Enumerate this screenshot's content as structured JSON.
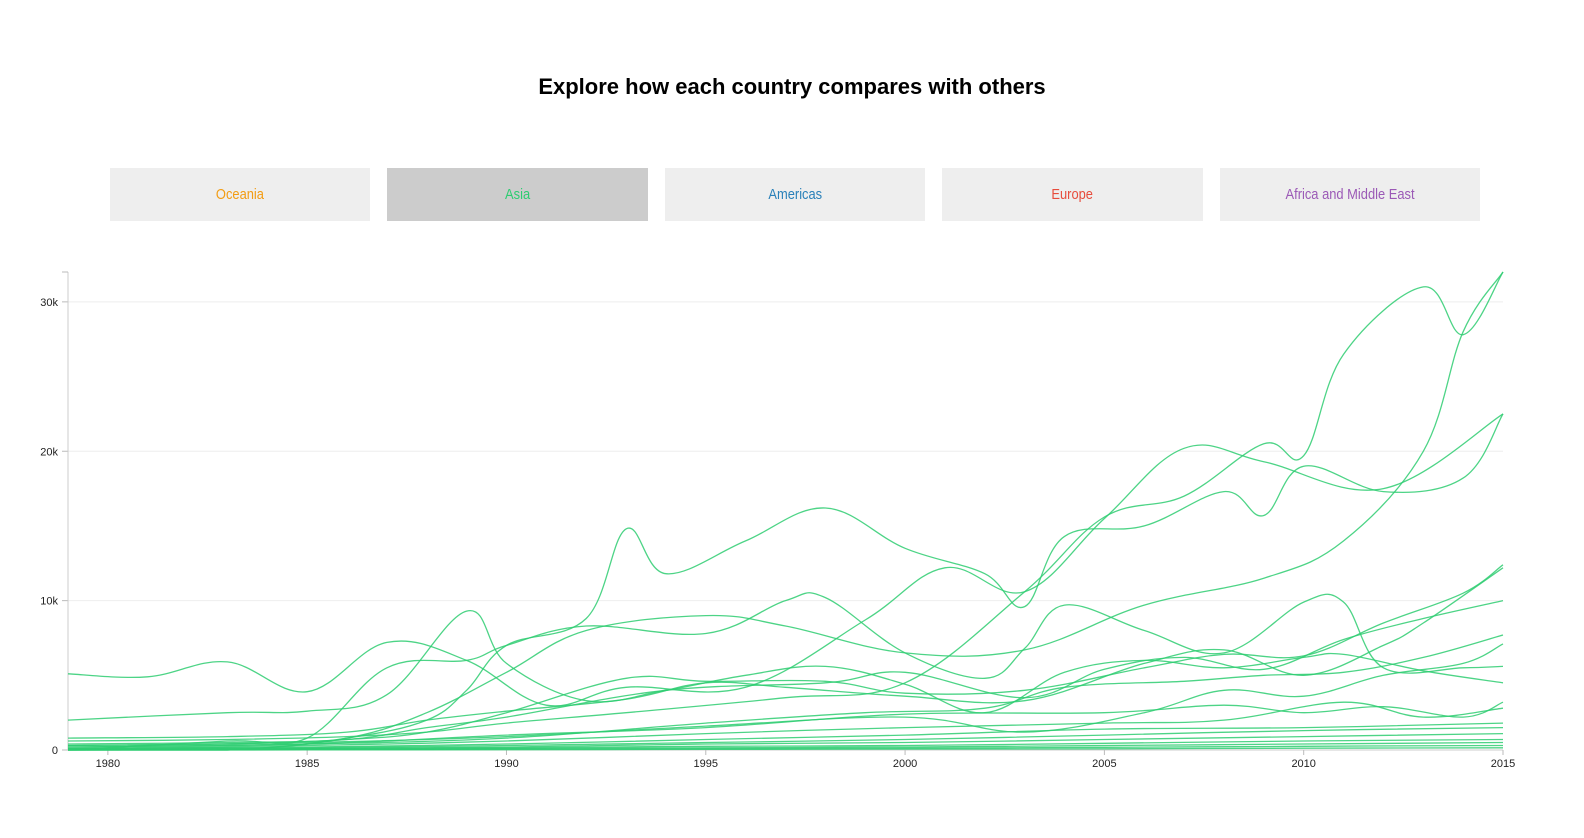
{
  "title": "Explore how each country compares with others",
  "tabs": [
    {
      "label": "Oceania",
      "color": "#f39c12",
      "active": false
    },
    {
      "label": "Asia",
      "color": "#2ecc71",
      "active": true
    },
    {
      "label": "Americas",
      "color": "#2980b9",
      "active": false
    },
    {
      "label": "Europe",
      "color": "#e74c3c",
      "active": false
    },
    {
      "label": "Africa and Middle East",
      "color": "#9b59b6",
      "active": false
    }
  ],
  "chart_data": {
    "type": "line",
    "line_color": "#2ecc71",
    "grid": true,
    "xlim": [
      1979,
      2015
    ],
    "ylim": [
      0,
      32000
    ],
    "x_ticks": [
      1980,
      1985,
      1990,
      1995,
      2000,
      2005,
      2010,
      2015
    ],
    "y_ticks": [
      {
        "value": 0,
        "label": "0"
      },
      {
        "value": 10000,
        "label": "10k"
      },
      {
        "value": 20000,
        "label": "20k"
      },
      {
        "value": 30000,
        "label": "30k"
      }
    ],
    "series": [
      {
        "points": [
          [
            1979,
            0
          ],
          [
            1983,
            0
          ],
          [
            1986,
            800
          ],
          [
            1988,
            2500
          ],
          [
            1990,
            5200
          ],
          [
            1992,
            8000
          ],
          [
            1995,
            9000
          ],
          [
            1997,
            8300
          ],
          [
            2000,
            6500
          ],
          [
            2003,
            6700
          ],
          [
            2006,
            9700
          ],
          [
            2009,
            11500
          ],
          [
            2011,
            14000
          ],
          [
            2013,
            20000
          ],
          [
            2014,
            28000
          ],
          [
            2015,
            32000
          ]
        ]
      },
      {
        "points": [
          [
            1979,
            600
          ],
          [
            1983,
            700
          ],
          [
            1986,
            900
          ],
          [
            1988,
            1200
          ],
          [
            1990,
            1800
          ],
          [
            1993,
            2500
          ],
          [
            1997,
            3500
          ],
          [
            2000,
            4500
          ],
          [
            2003,
            10600
          ],
          [
            2005,
            15600
          ],
          [
            2007,
            17000
          ],
          [
            2009,
            20500
          ],
          [
            2010,
            19700
          ],
          [
            2011,
            26500
          ],
          [
            2013,
            31000
          ],
          [
            2014,
            27800
          ],
          [
            2015,
            32000
          ]
        ]
      },
      {
        "points": [
          [
            1979,
            0
          ],
          [
            1983,
            0
          ],
          [
            1986,
            800
          ],
          [
            1988,
            2000
          ],
          [
            1989,
            4000
          ],
          [
            1990,
            7000
          ],
          [
            1992,
            8800
          ],
          [
            1993,
            14800
          ],
          [
            1994,
            11800
          ],
          [
            1996,
            14000
          ],
          [
            1998,
            16200
          ],
          [
            2000,
            13500
          ],
          [
            2002,
            11800
          ],
          [
            2003,
            9600
          ],
          [
            2004,
            14300
          ],
          [
            2006,
            15000
          ],
          [
            2008,
            17300
          ],
          [
            2009,
            15700
          ],
          [
            2010,
            19000
          ],
          [
            2012,
            17300
          ],
          [
            2014,
            18200
          ],
          [
            2015,
            22500
          ]
        ]
      },
      {
        "points": [
          [
            1979,
            5100
          ],
          [
            1981,
            4900
          ],
          [
            1983,
            5900
          ],
          [
            1985,
            3900
          ],
          [
            1987,
            7200
          ],
          [
            1989,
            6000
          ],
          [
            1991,
            3000
          ],
          [
            1993,
            4200
          ],
          [
            1996,
            4200
          ],
          [
            1999,
            8700
          ],
          [
            2001,
            12200
          ],
          [
            2003,
            10600
          ],
          [
            2005,
            15500
          ],
          [
            2007,
            20200
          ],
          [
            2009,
            19300
          ],
          [
            2012,
            17500
          ],
          [
            2015,
            22500
          ]
        ]
      },
      {
        "points": [
          [
            1979,
            0
          ],
          [
            1983,
            600
          ],
          [
            1985,
            800
          ],
          [
            1987,
            5500
          ],
          [
            1989,
            6000
          ],
          [
            1990,
            7000
          ],
          [
            1992,
            8300
          ],
          [
            1995,
            7800
          ],
          [
            1997,
            10000
          ],
          [
            1998,
            10200
          ],
          [
            2000,
            6500
          ],
          [
            2002,
            4800
          ],
          [
            2003,
            6800
          ],
          [
            2004,
            9700
          ],
          [
            2006,
            8000
          ],
          [
            2008,
            6500
          ],
          [
            2010,
            9900
          ],
          [
            2011,
            9900
          ],
          [
            2012,
            5500
          ],
          [
            2014,
            5500
          ],
          [
            2015,
            5600
          ]
        ]
      },
      {
        "points": [
          [
            1979,
            2000
          ],
          [
            1983,
            2500
          ],
          [
            1985,
            2600
          ],
          [
            1987,
            3700
          ],
          [
            1989,
            9300
          ],
          [
            1990,
            5800
          ],
          [
            1992,
            3300
          ],
          [
            1994,
            4000
          ],
          [
            1996,
            5000
          ],
          [
            1998,
            5600
          ],
          [
            2000,
            4400
          ],
          [
            2002,
            2500
          ],
          [
            2004,
            5200
          ],
          [
            2006,
            6000
          ],
          [
            2008,
            5500
          ],
          [
            2010,
            6200
          ],
          [
            2011,
            6400
          ],
          [
            2013,
            5300
          ],
          [
            2015,
            4500
          ]
        ]
      },
      {
        "points": [
          [
            1979,
            800
          ],
          [
            1983,
            900
          ],
          [
            1986,
            1200
          ],
          [
            1988,
            2000
          ],
          [
            1990,
            2600
          ],
          [
            1993,
            3400
          ],
          [
            1995,
            4500
          ],
          [
            1997,
            4200
          ],
          [
            2000,
            3600
          ],
          [
            2003,
            3300
          ],
          [
            2006,
            5800
          ],
          [
            2008,
            6700
          ],
          [
            2010,
            5000
          ],
          [
            2012,
            7000
          ],
          [
            2013,
            8500
          ],
          [
            2015,
            12200
          ]
        ]
      },
      {
        "points": [
          [
            1979,
            300
          ],
          [
            1983,
            400
          ],
          [
            1986,
            700
          ],
          [
            1988,
            1200
          ],
          [
            1990,
            2500
          ],
          [
            1993,
            4800
          ],
          [
            1995,
            4600
          ],
          [
            1998,
            4600
          ],
          [
            2000,
            3800
          ],
          [
            2003,
            4000
          ],
          [
            2006,
            5500
          ],
          [
            2008,
            6400
          ],
          [
            2010,
            6300
          ],
          [
            2012,
            8500
          ],
          [
            2014,
            10500
          ],
          [
            2015,
            12400
          ]
        ]
      },
      {
        "points": [
          [
            1979,
            400
          ],
          [
            1983,
            500
          ],
          [
            1986,
            700
          ],
          [
            1988,
            1500
          ],
          [
            1990,
            2200
          ],
          [
            1994,
            4000
          ],
          [
            1998,
            4500
          ],
          [
            2000,
            5200
          ],
          [
            2003,
            3500
          ],
          [
            2005,
            5400
          ],
          [
            2007,
            6200
          ],
          [
            2009,
            5400
          ],
          [
            2011,
            7400
          ],
          [
            2013,
            8800
          ],
          [
            2015,
            10000
          ]
        ]
      },
      {
        "points": [
          [
            1979,
            200
          ],
          [
            1985,
            400
          ],
          [
            1990,
            800
          ],
          [
            1995,
            1800
          ],
          [
            1999,
            2500
          ],
          [
            2002,
            2800
          ],
          [
            2004,
            4200
          ],
          [
            2007,
            4600
          ],
          [
            2009,
            5000
          ],
          [
            2011,
            5200
          ],
          [
            2013,
            6200
          ],
          [
            2015,
            7700
          ]
        ]
      },
      {
        "points": [
          [
            1979,
            300
          ],
          [
            1985,
            500
          ],
          [
            1990,
            900
          ],
          [
            1995,
            1600
          ],
          [
            2000,
            2200
          ],
          [
            2003,
            1200
          ],
          [
            2006,
            2500
          ],
          [
            2008,
            4000
          ],
          [
            2010,
            3600
          ],
          [
            2012,
            5000
          ],
          [
            2014,
            5800
          ],
          [
            2015,
            7100
          ]
        ]
      },
      {
        "points": [
          [
            1979,
            200
          ],
          [
            1985,
            400
          ],
          [
            1990,
            1000
          ],
          [
            1995,
            1500
          ],
          [
            2000,
            2400
          ],
          [
            2005,
            2500
          ],
          [
            2008,
            3000
          ],
          [
            2010,
            2500
          ],
          [
            2012,
            2900
          ],
          [
            2014,
            2200
          ],
          [
            2015,
            3200
          ]
        ]
      },
      {
        "points": [
          [
            1979,
            100
          ],
          [
            1985,
            300
          ],
          [
            1990,
            600
          ],
          [
            1995,
            1100
          ],
          [
            2000,
            1500
          ],
          [
            2005,
            1800
          ],
          [
            2008,
            2000
          ],
          [
            2011,
            3200
          ],
          [
            2013,
            2200
          ],
          [
            2015,
            2800
          ]
        ]
      },
      {
        "points": [
          [
            1979,
            100
          ],
          [
            1985,
            200
          ],
          [
            1990,
            400
          ],
          [
            1995,
            700
          ],
          [
            2000,
            1000
          ],
          [
            2005,
            1400
          ],
          [
            2010,
            1500
          ],
          [
            2015,
            1800
          ]
        ]
      },
      {
        "points": [
          [
            1979,
            100
          ],
          [
            1985,
            150
          ],
          [
            1990,
            300
          ],
          [
            1995,
            500
          ],
          [
            2000,
            700
          ],
          [
            2005,
            1000
          ],
          [
            2010,
            1300
          ],
          [
            2015,
            1500
          ]
        ]
      },
      {
        "points": [
          [
            1979,
            0
          ],
          [
            1985,
            100
          ],
          [
            1990,
            200
          ],
          [
            1995,
            400
          ],
          [
            2000,
            500
          ],
          [
            2005,
            700
          ],
          [
            2010,
            900
          ],
          [
            2015,
            1100
          ]
        ]
      },
      {
        "points": [
          [
            1979,
            50
          ],
          [
            1985,
            100
          ],
          [
            1990,
            150
          ],
          [
            1995,
            250
          ],
          [
            2000,
            300
          ],
          [
            2005,
            450
          ],
          [
            2010,
            600
          ],
          [
            2015,
            700
          ]
        ]
      },
      {
        "points": [
          [
            1979,
            0
          ],
          [
            1985,
            50
          ],
          [
            1990,
            100
          ],
          [
            1995,
            150
          ],
          [
            2000,
            200
          ],
          [
            2005,
            300
          ],
          [
            2010,
            400
          ],
          [
            2015,
            500
          ]
        ]
      },
      {
        "points": [
          [
            1979,
            0
          ],
          [
            1985,
            30
          ],
          [
            1990,
            60
          ],
          [
            1995,
            90
          ],
          [
            2000,
            120
          ],
          [
            2005,
            180
          ],
          [
            2010,
            250
          ],
          [
            2015,
            300
          ]
        ]
      },
      {
        "points": [
          [
            1979,
            0
          ],
          [
            1985,
            10
          ],
          [
            1990,
            20
          ],
          [
            1995,
            40
          ],
          [
            2000,
            60
          ],
          [
            2005,
            80
          ],
          [
            2010,
            120
          ],
          [
            2015,
            150
          ]
        ]
      }
    ]
  }
}
